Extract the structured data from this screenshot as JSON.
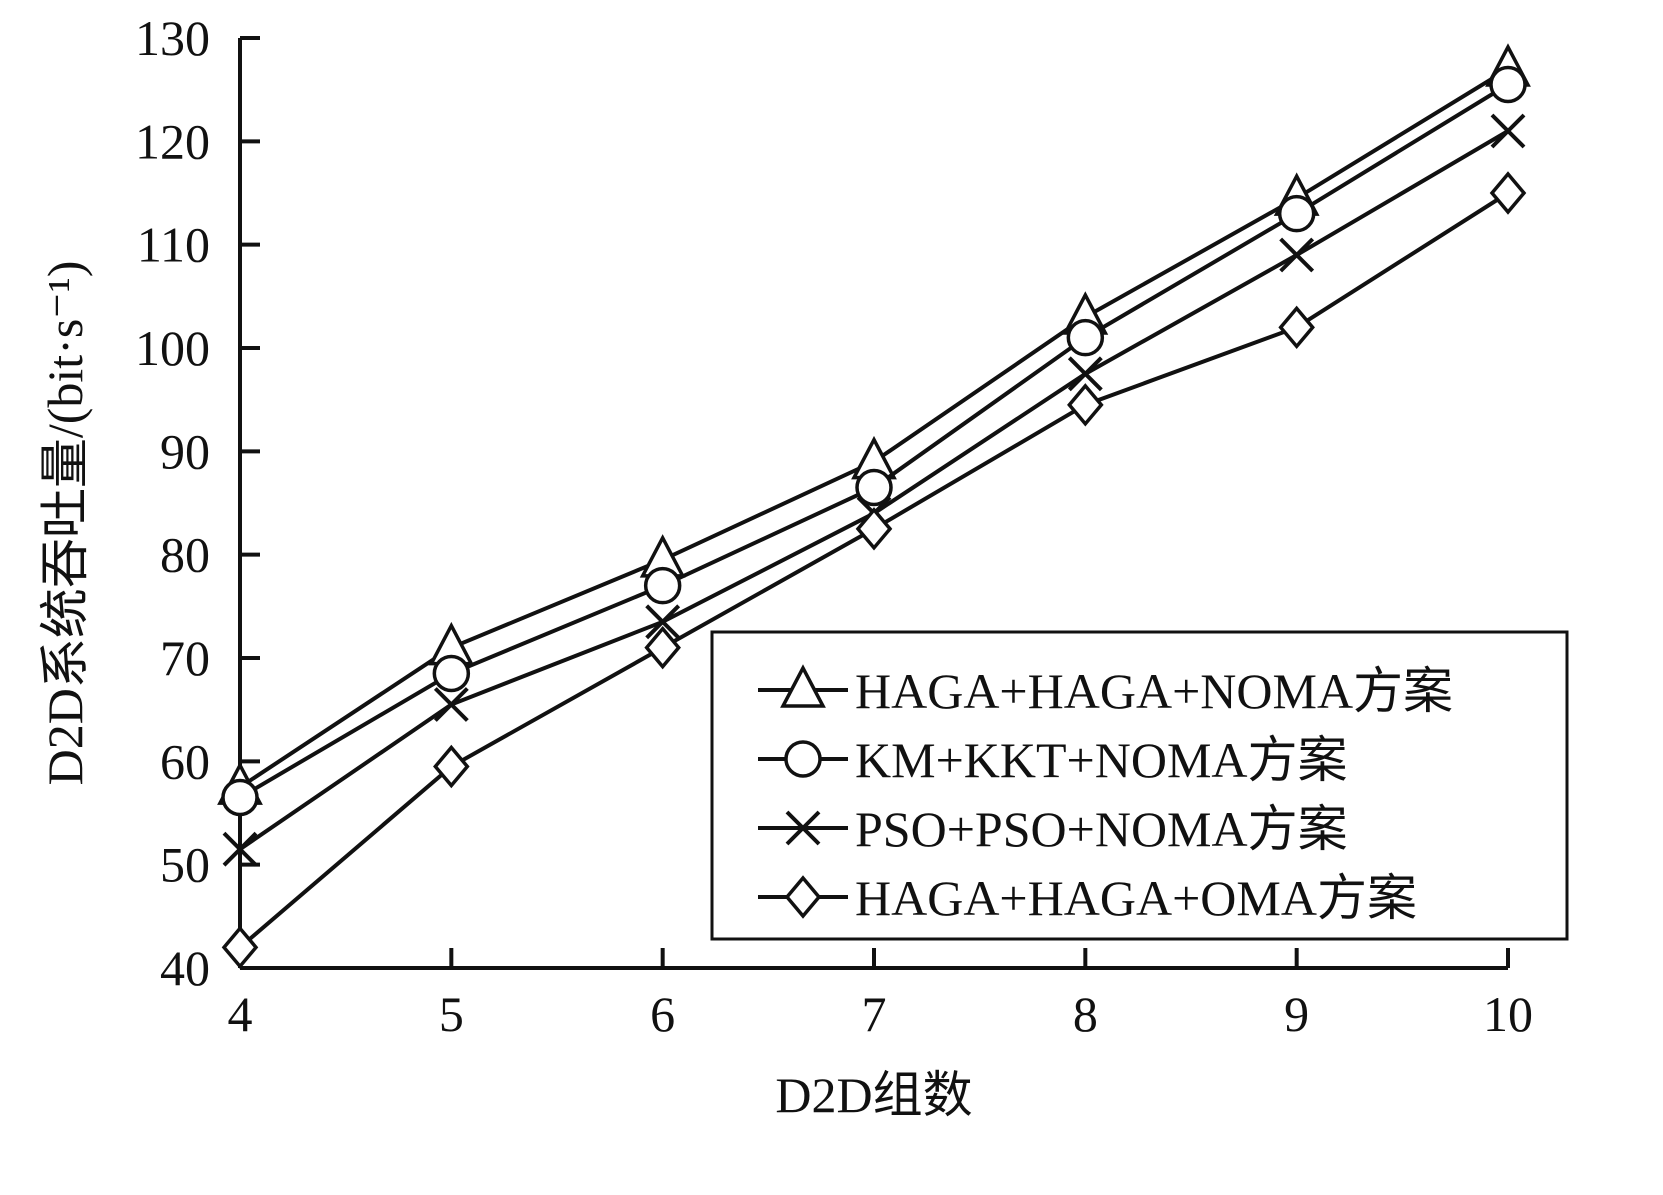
{
  "chart_data": {
    "type": "line",
    "title": "",
    "xlabel": "D2D组数",
    "ylabel": "D2D系统吞吐量/(bit·s⁻¹)",
    "xlim": [
      4,
      10
    ],
    "ylim": [
      40,
      130
    ],
    "x": [
      4,
      5,
      6,
      7,
      8,
      9,
      10
    ],
    "xticks": [
      "4",
      "5",
      "6",
      "7",
      "8",
      "9",
      "10"
    ],
    "yticks": [
      "40",
      "50",
      "60",
      "70",
      "80",
      "90",
      "100",
      "110",
      "120",
      "130"
    ],
    "grid": false,
    "legend_position": "bottom-right",
    "series": [
      {
        "name": "HAGA+HAGA+NOMA方案",
        "marker": "triangle",
        "values": [
          57.5,
          71,
          79.5,
          89,
          103,
          114.5,
          127
        ]
      },
      {
        "name": "KM+KKT+NOMA方案",
        "marker": "circle",
        "values": [
          56.5,
          68.5,
          77,
          86.5,
          101,
          113,
          125.5
        ]
      },
      {
        "name": "PSO+PSO+NOMA方案",
        "marker": "x",
        "values": [
          51.5,
          65.5,
          73.5,
          84,
          97.5,
          109,
          121
        ]
      },
      {
        "name": "HAGA+HAGA+OMA方案",
        "marker": "diamond",
        "values": [
          42,
          59.5,
          71,
          82.5,
          94.5,
          102,
          115
        ]
      }
    ]
  }
}
